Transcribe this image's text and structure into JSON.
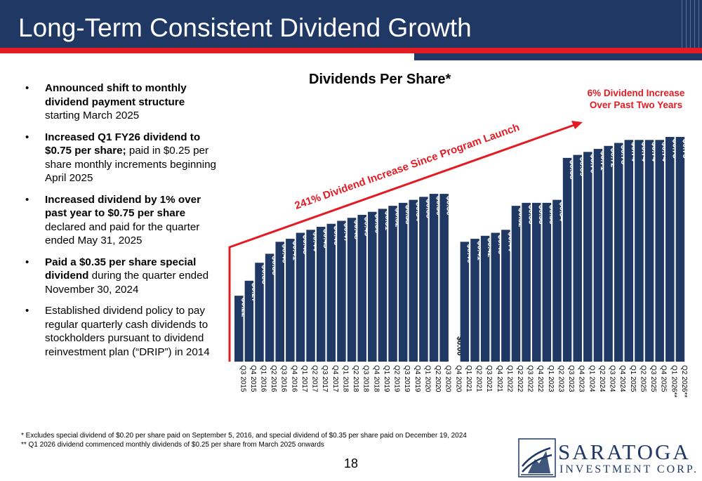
{
  "header": {
    "title": "Long-Term Consistent Dividend Growth"
  },
  "bullets": [
    {
      "bold": "Announced shift to monthly dividend payment structure",
      "text": " starting March 2025"
    },
    {
      "bold": "Increased Q1 FY26 dividend to $0.75 per share;",
      "text": " paid in $0.25 per share monthly increments beginning April 2025"
    },
    {
      "bold": "Increased dividend by 1% over past year to $0.75 per share",
      "text": " declared and paid for the quarter ended May 31, 2025"
    },
    {
      "bold": "Paid a $0.35 per share special dividend",
      "text": " during the quarter ended November 30, 2024"
    },
    {
      "bold": "",
      "text": "Established dividend policy to pay regular quarterly cash dividends to stockholders pursuant to dividend reinvestment plan (“DRIP”) in 2014"
    }
  ],
  "chart_data": {
    "type": "bar",
    "title": "Dividends Per Share*",
    "xlabel": "",
    "ylabel": "",
    "ylim": [
      0,
      0.8
    ],
    "bar_color": "#1f3864",
    "categories": [
      "Q3 2015",
      "Q4 2015",
      "Q1 2016",
      "Q2 2016",
      "Q3 2016",
      "Q4 2016",
      "Q1 2017",
      "Q2 2017",
      "Q3 2017",
      "Q4 2017",
      "Q1 2018",
      "Q2 2018",
      "Q3 2018",
      "Q4 2018",
      "Q1 2019",
      "Q2 2019",
      "Q3 2019",
      "Q4 2019",
      "Q1 2020",
      "Q2 2020",
      "Q3 2020",
      "Q4 2020",
      "Q1 2021",
      "Q2 2021",
      "Q3 2021",
      "Q4 2021",
      "Q1 2022",
      "Q2 2022",
      "Q3 2022",
      "Q4 2022",
      "Q1 2023",
      "Q2 2023",
      "Q3 2023",
      "Q4 2023",
      "Q1 2024",
      "Q2 2024",
      "Q3 2024",
      "Q4 2024",
      "Q1 2025",
      "Q2 2025",
      "Q3 2025",
      "Q4 2025",
      "Q1 2026**",
      "Q2 2026**"
    ],
    "values": [
      0.22,
      0.27,
      0.33,
      0.36,
      0.4,
      0.41,
      0.43,
      0.44,
      0.45,
      0.46,
      0.47,
      0.48,
      0.49,
      0.5,
      0.51,
      0.52,
      0.53,
      0.54,
      0.55,
      0.56,
      0.56,
      0.0,
      0.4,
      0.41,
      0.42,
      0.43,
      0.44,
      0.52,
      0.53,
      0.53,
      0.53,
      0.54,
      0.68,
      0.69,
      0.7,
      0.71,
      0.72,
      0.73,
      0.74,
      0.74,
      0.74,
      0.74,
      0.75,
      0.75
    ],
    "labels": [
      "$0.22",
      "$0.27",
      "$0.33",
      "$0.36",
      "$0.40",
      "$0.41",
      "$0.43",
      "$0.44",
      "$0.45",
      "$0.46",
      "$0.47",
      "$0.48",
      "$0.49",
      "$0.50",
      "$0.51",
      "$0.52",
      "$0.53",
      "$0.54",
      "$0.55",
      "$0.56",
      "$0.56",
      "$0.00",
      "$0.40",
      "$0.41",
      "$0.42",
      "$0.43",
      "$0.44",
      "$0.52",
      "$0.53",
      "$0.53",
      "$0.53",
      "$0.54",
      "$0.68",
      "$0.69",
      "$0.70",
      "$0.71",
      "$0.72",
      "$0.73",
      "$0.74",
      "$0.74",
      "$0.74",
      "$0.74",
      "$0.75",
      "$0.75"
    ],
    "annotations": {
      "growth_arrow": "241% Dividend Increase Since Program Launch",
      "callout": "6% Dividend Increase Over Past Two Years",
      "accent_color": "#e31b23"
    }
  },
  "footnotes": [
    "* Excludes special dividend of $0.20 per share paid on September 5, 2016, and special dividend of $0.35 per share paid on December 19, 2024",
    "** Q1 2026 dividend commenced monthly dividends of $0.25 per share from March 2025 onwards"
  ],
  "page_number": "18",
  "logo": {
    "name": "SARATOGA",
    "subtitle": "INVESTMENT CORP."
  }
}
